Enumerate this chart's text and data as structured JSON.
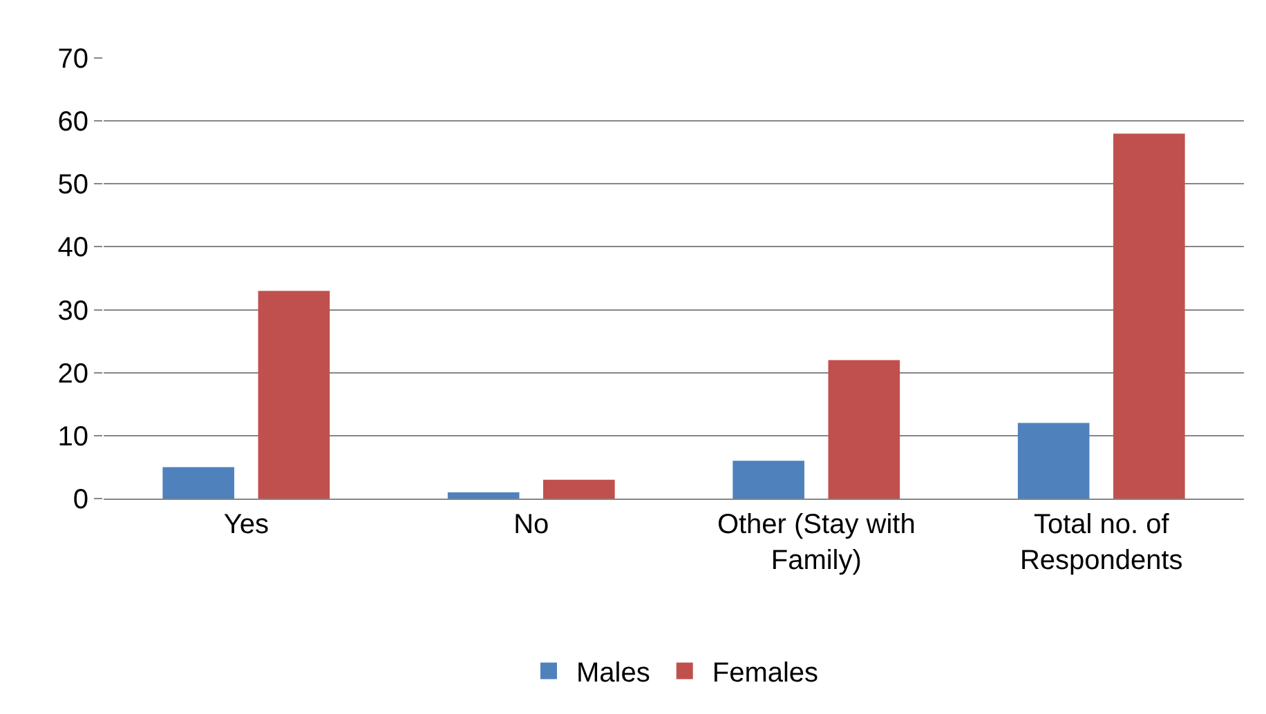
{
  "chart_data": {
    "type": "bar",
    "categories": [
      "Yes",
      "No",
      "Other (Stay with Family)",
      "Total no. of Respondents"
    ],
    "series": [
      {
        "name": "Males",
        "color": "#4f81bd",
        "values": [
          5,
          1,
          6,
          12
        ]
      },
      {
        "name": "Females",
        "color": "#c0504d",
        "values": [
          33,
          3,
          22,
          58
        ]
      }
    ],
    "ylim": [
      0,
      70
    ],
    "yticks": [
      0,
      10,
      20,
      30,
      40,
      50,
      60,
      70
    ],
    "grid": "y",
    "legend": "bottom"
  }
}
